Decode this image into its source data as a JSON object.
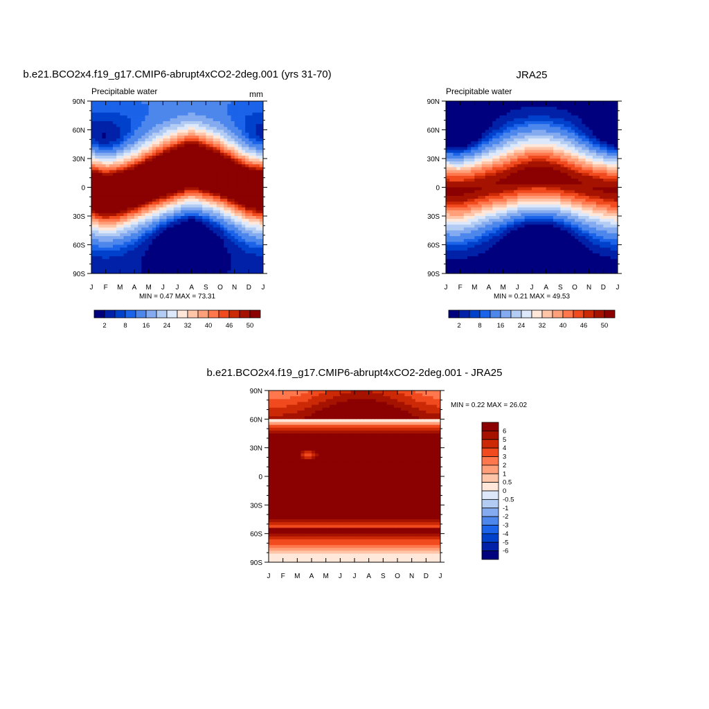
{
  "palette": [
    "#00007f",
    "#0021a8",
    "#0041cc",
    "#1b63e8",
    "#4d87ec",
    "#84aaef",
    "#b2ccf3",
    "#dde9fa",
    "#ffe7da",
    "#ffc5a9",
    "#ffa07a",
    "#ff774c",
    "#f04a1e",
    "#cc2906",
    "#a51300",
    "#8b0000"
  ],
  "chart_data": [
    {
      "type": "heatmap",
      "panel": "model",
      "title": "b.e21.BCO2x4.f19_g17.CMIP6-abrupt4xCO2-2deg.001 (yrs 31-70)",
      "subtitle_left": "Precipitable water",
      "subtitle_right": "mm",
      "x_ticks": [
        "J",
        "F",
        "M",
        "A",
        "M",
        "J",
        "J",
        "A",
        "S",
        "O",
        "N",
        "D",
        "J"
      ],
      "y_ticks": [
        "90N",
        "60N",
        "30N",
        "0",
        "30S",
        "60S",
        "90S"
      ],
      "ylim": [
        -90,
        90
      ],
      "min_max_text": "MIN =   0.47 MAX =  73.31",
      "min": 0.47,
      "max": 73.31,
      "colorbar_labels": [
        "2",
        "8",
        "16",
        "24",
        "32",
        "40",
        "46",
        "50"
      ],
      "colorbar_levels": [
        2,
        4,
        6,
        8,
        12,
        16,
        20,
        24,
        28,
        32,
        36,
        40,
        44,
        46,
        50
      ],
      "wet_peak_lat": [
        -2,
        -6,
        -4,
        0,
        5,
        10,
        15,
        20,
        16,
        12,
        6,
        0,
        -2
      ],
      "peak_mm": 70,
      "pole_n_mm": 8,
      "pole_s_mm": 2
    },
    {
      "type": "heatmap",
      "panel": "obs",
      "title": "JRA25",
      "subtitle_left": "Precipitable water",
      "x_ticks": [
        "J",
        "F",
        "M",
        "A",
        "M",
        "J",
        "J",
        "A",
        "S",
        "O",
        "N",
        "D",
        "J"
      ],
      "y_ticks": [
        "90N",
        "60N",
        "30N",
        "0",
        "30S",
        "60S",
        "90S"
      ],
      "ylim": [
        -90,
        90
      ],
      "min_max_text": "MIN =   0.21 MAX =  49.53",
      "min": 0.21,
      "max": 49.53,
      "colorbar_labels": [
        "2",
        "8",
        "16",
        "24",
        "32",
        "40",
        "46",
        "50"
      ],
      "colorbar_levels": [
        2,
        4,
        6,
        8,
        12,
        16,
        20,
        24,
        28,
        32,
        36,
        40,
        44,
        46,
        50
      ],
      "wet_peak_lat": [
        -2,
        -3,
        0,
        3,
        5,
        8,
        10,
        10,
        8,
        5,
        2,
        0,
        -2
      ],
      "peak_mm": 50,
      "pole_n_mm": 1,
      "pole_s_mm": 0.5
    },
    {
      "type": "heatmap",
      "panel": "diff",
      "title": "b.e21.BCO2x4.f19_g17.CMIP6-abrupt4xCO2-2deg.001 - JRA25",
      "x_ticks": [
        "J",
        "F",
        "M",
        "A",
        "M",
        "J",
        "J",
        "A",
        "S",
        "O",
        "N",
        "D",
        "J"
      ],
      "y_ticks": [
        "90N",
        "60N",
        "30N",
        "0",
        "30S",
        "60S",
        "90S"
      ],
      "ylim": [
        -90,
        90
      ],
      "min_max_text": "MIN =   0.22 MAX =  26.02",
      "min": 0.22,
      "max": 26.02,
      "colorbar_labels": [
        "6",
        "5",
        "4",
        "3",
        "2",
        "1",
        "0.5",
        "0",
        "-0.5",
        "-1",
        "-2",
        "-3",
        "-4",
        "-5",
        "-6"
      ],
      "colorbar_levels": [
        -6,
        -5,
        -4,
        -3,
        -2,
        -1,
        -0.5,
        0,
        0.5,
        1,
        2,
        3,
        4,
        5,
        6
      ]
    }
  ]
}
